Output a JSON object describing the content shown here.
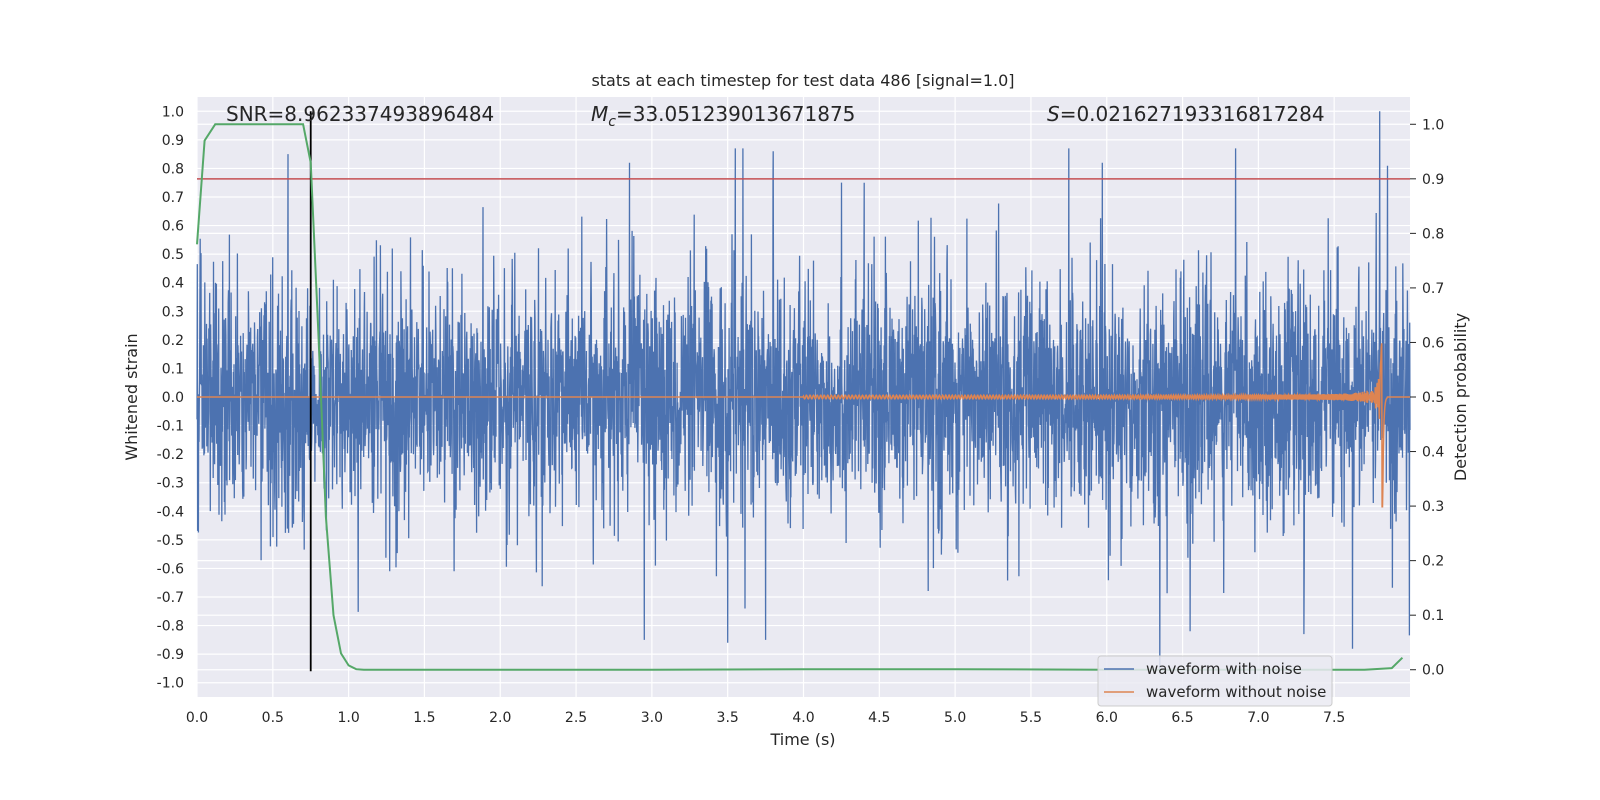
{
  "chart_data": {
    "type": "line",
    "title": "stats at each timestep for test data 486 [signal=1.0]",
    "xlabel": "Time (s)",
    "ylabel": "Whitened strain",
    "ylabel_right": "Detection probability",
    "xlim": [
      0.0,
      8.0
    ],
    "ylim": [
      -1.05,
      1.05
    ],
    "ylim_right": [
      -0.05,
      1.05
    ],
    "x_ticks": [
      "0.0",
      "0.5",
      "1.0",
      "1.5",
      "2.0",
      "2.5",
      "3.0",
      "3.5",
      "4.0",
      "4.5",
      "5.0",
      "5.5",
      "6.0",
      "6.5",
      "7.0",
      "7.5"
    ],
    "y_ticks": [
      "1.0",
      "0.9",
      "0.8",
      "0.7",
      "0.6",
      "0.5",
      "0.4",
      "0.3",
      "0.2",
      "0.1",
      "0.0",
      "-0.1",
      "-0.2",
      "-0.3",
      "-0.4",
      "-0.5",
      "-0.6",
      "-0.7",
      "-0.8",
      "-0.9",
      "-1.0"
    ],
    "y_ticks_right": [
      "1.0",
      "0.9",
      "0.8",
      "0.7",
      "0.6",
      "0.5",
      "0.4",
      "0.3",
      "0.2",
      "0.1",
      "0.0"
    ],
    "annotations": {
      "snr": "SNR=8.962337493896484",
      "mc_symbol": "M",
      "mc_subscript": "c",
      "mc_value": "=33.051239013671875",
      "s_symbol": "S",
      "s_value": "=0.021627193316817284"
    },
    "threshold": {
      "value": 0.9,
      "axis": "right",
      "color": "#c44e52"
    },
    "vertical_marker": {
      "x": 0.75,
      "ymin": -0.96,
      "ymax": 1.0,
      "color": "#000000"
    },
    "series": [
      {
        "name": "waveform with noise",
        "color": "#4c72b0",
        "axis": "left",
        "envelope": {
          "typical_amplitude": 0.45,
          "peak_max": 1.0,
          "peak_min": -0.96
        },
        "notable_peaks": [
          {
            "x": 0.6,
            "y": 0.85
          },
          {
            "x": 3.55,
            "y": 0.87
          },
          {
            "x": 3.6,
            "y": 0.87
          },
          {
            "x": 3.8,
            "y": 0.86
          },
          {
            "x": 4.4,
            "y": 0.75
          },
          {
            "x": 5.75,
            "y": 0.87
          },
          {
            "x": 6.85,
            "y": 0.87
          },
          {
            "x": 7.8,
            "y": 1.0
          }
        ],
        "notable_troughs": [
          {
            "x": 2.95,
            "y": -0.85
          },
          {
            "x": 3.5,
            "y": -0.86
          },
          {
            "x": 3.75,
            "y": -0.85
          },
          {
            "x": 6.35,
            "y": -0.96
          },
          {
            "x": 6.55,
            "y": -0.82
          },
          {
            "x": 7.3,
            "y": -0.83
          }
        ]
      },
      {
        "name": "waveform without noise",
        "color": "#dd8452",
        "axis": "left",
        "chirp": {
          "t_start": 4.0,
          "t_merge": 7.82,
          "peak_amplitude": 0.47,
          "trough_amplitude": -0.5
        }
      },
      {
        "name": "detection probability",
        "color": "#55a868",
        "axis": "right",
        "x": [
          0.0,
          0.05,
          0.12,
          0.2,
          0.3,
          0.5,
          0.7,
          0.75,
          0.8,
          0.85,
          0.9,
          0.95,
          1.0,
          1.05,
          1.1,
          2.0,
          3.0,
          4.0,
          5.0,
          6.0,
          7.0,
          7.7,
          7.88,
          7.95
        ],
        "y": [
          0.78,
          0.97,
          1.0,
          1.0,
          1.0,
          1.0,
          1.0,
          0.93,
          0.62,
          0.28,
          0.1,
          0.03,
          0.008,
          0.001,
          0.0,
          0.0,
          0.0,
          0.001,
          0.001,
          0.0,
          0.0,
          0.0,
          0.003,
          0.022
        ]
      }
    ],
    "legend": {
      "position": "lower-right",
      "entries": [
        {
          "label": "waveform with noise",
          "color": "#4c72b0"
        },
        {
          "label": "waveform without noise",
          "color": "#dd8452"
        }
      ]
    },
    "style": {
      "background": "#eaeaf2",
      "grid": true,
      "grid_color": "#ffffff"
    }
  }
}
